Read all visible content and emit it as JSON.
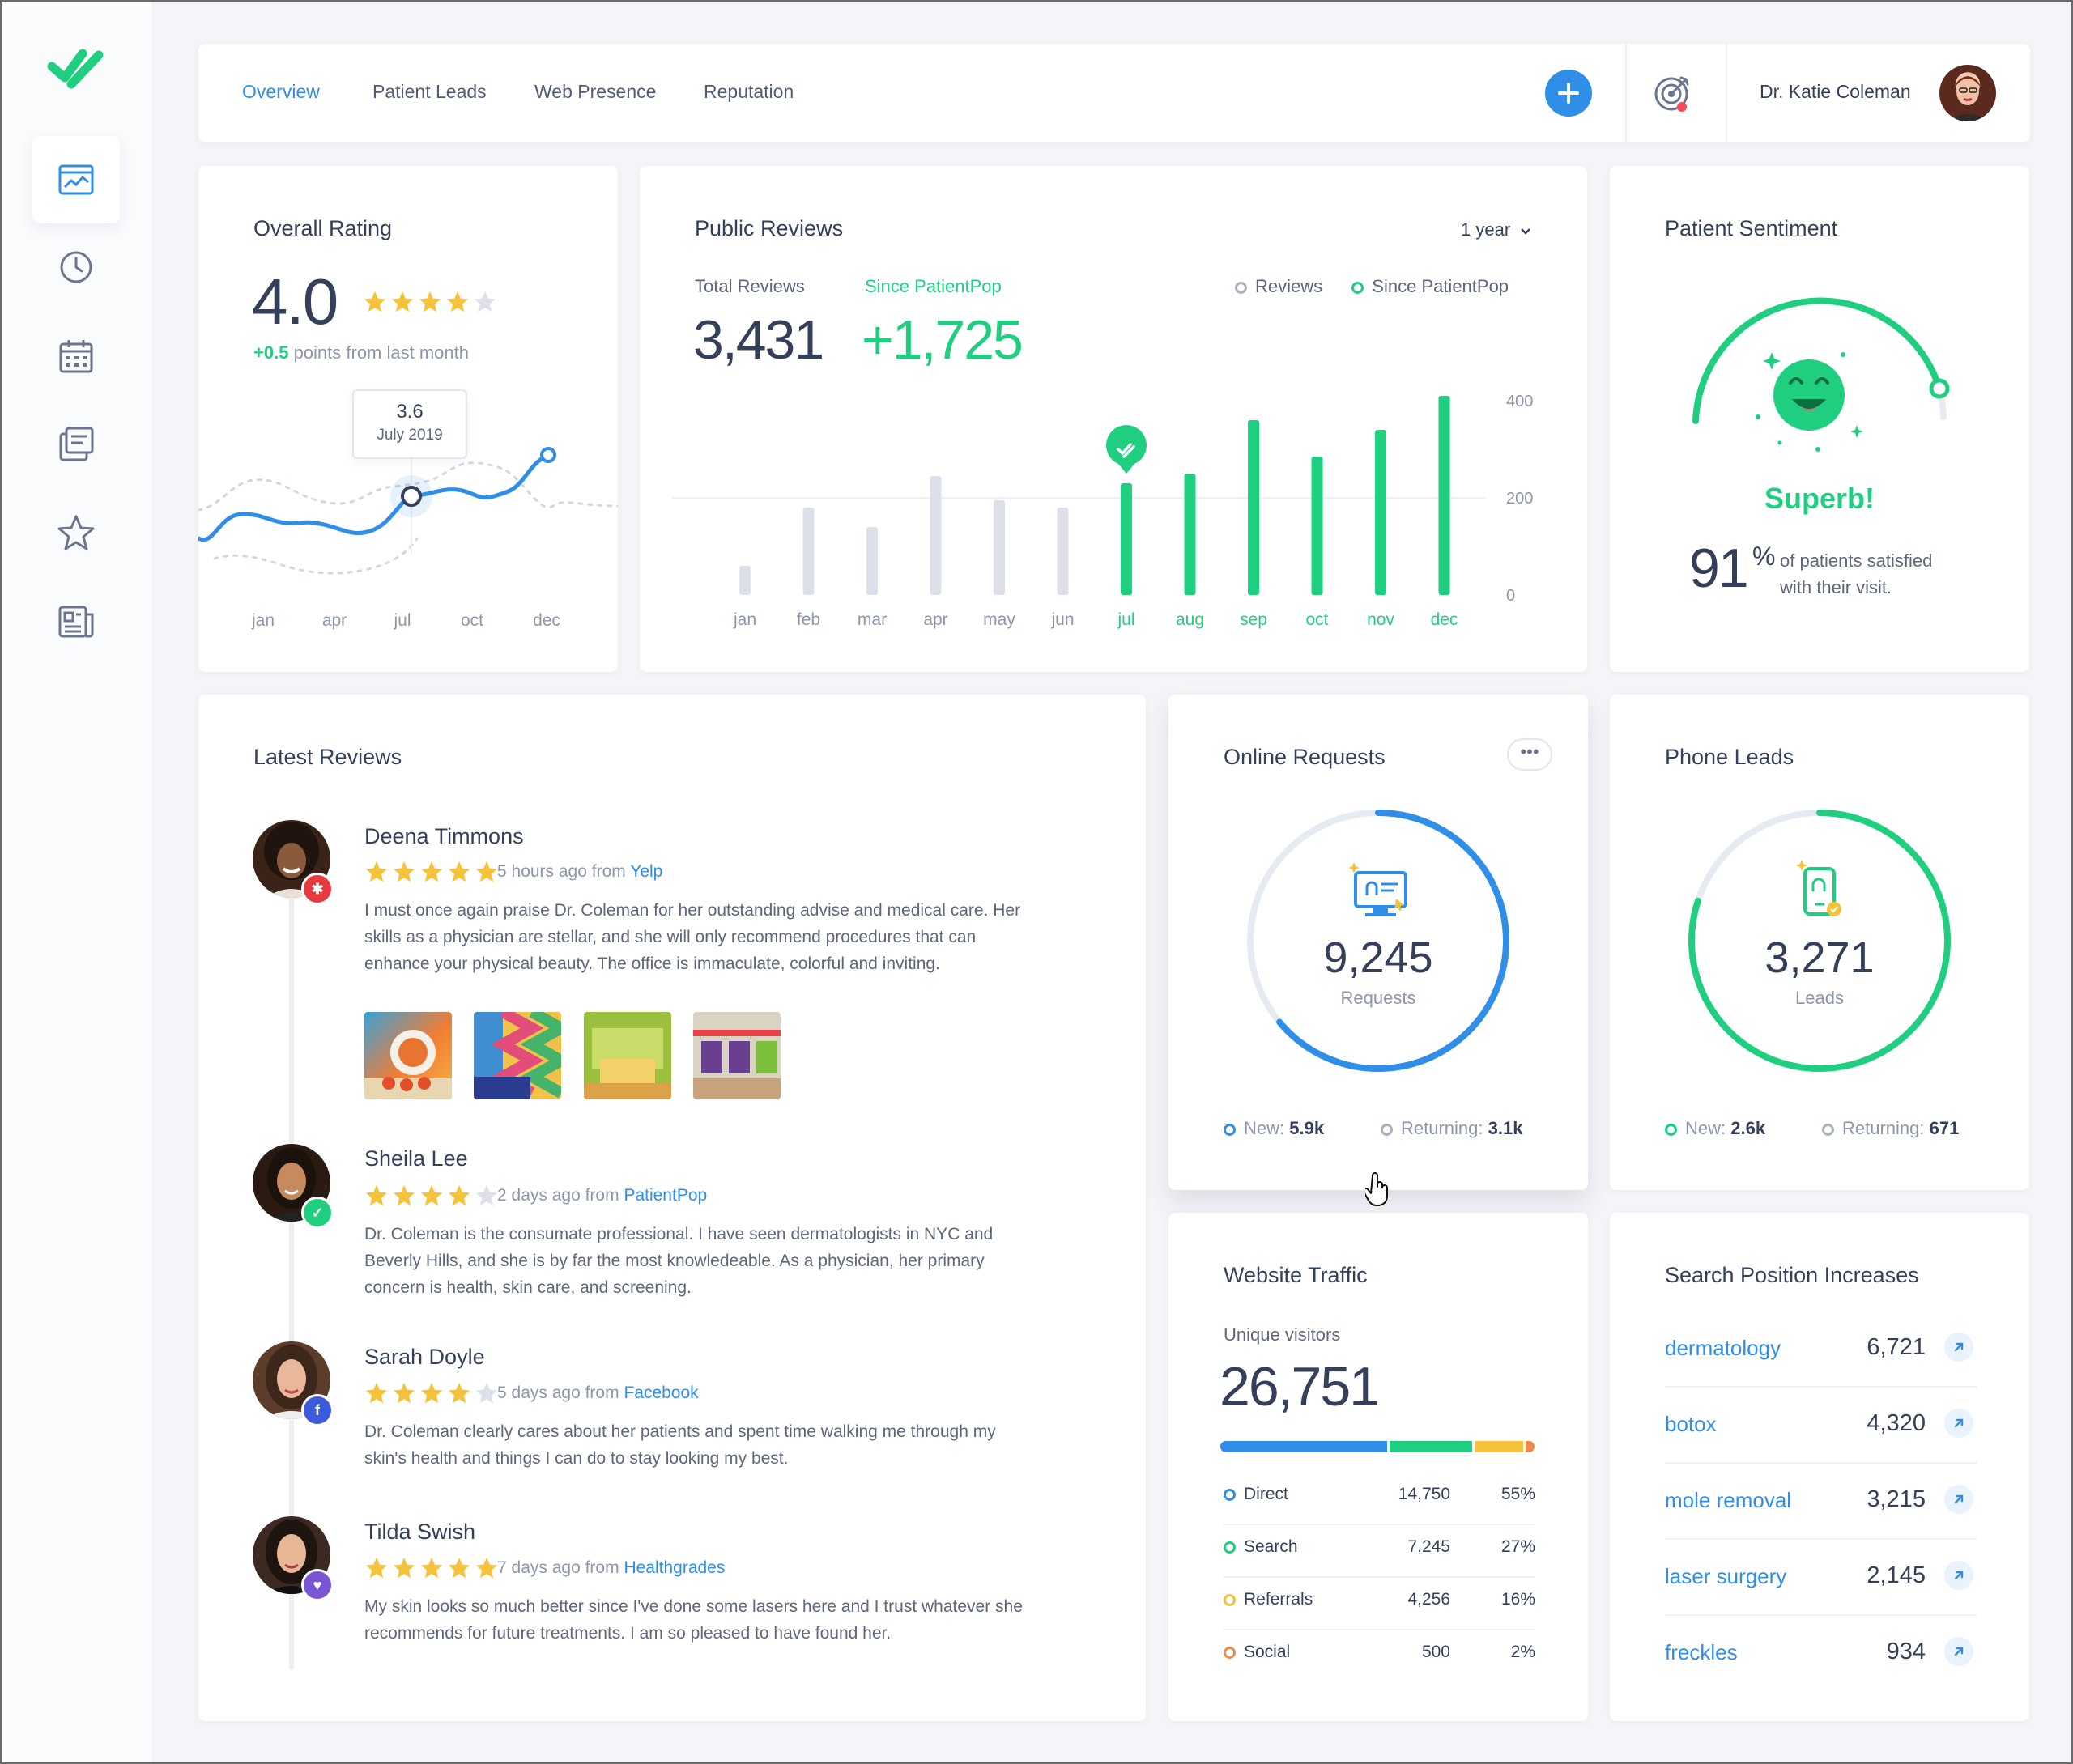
{
  "nav": {
    "tabs": [
      "Overview",
      "Patient Leads",
      "Web Presence",
      "Reputation"
    ],
    "user_name": "Dr. Katie Coleman"
  },
  "colors": {
    "blue": "#2e8ee8",
    "green": "#1fce7f",
    "gray_bar": "#dde0e8",
    "yellow": "#f5c33b",
    "orange": "#f0894a",
    "star": "#f5c33b"
  },
  "overall_rating": {
    "title": "Overall Rating",
    "value": "4.0",
    "stars": 4,
    "delta": "+0.5",
    "delta_text": "points from last month",
    "tooltip_value": "3.6",
    "tooltip_date": "July 2019",
    "x_labels": [
      "jan",
      "apr",
      "jul",
      "oct",
      "dec"
    ]
  },
  "public_reviews": {
    "title": "Public Reviews",
    "period": "1 year",
    "total_label": "Total Reviews",
    "total_value": "3,431",
    "since_label": "Since PatientPop",
    "since_value": "+1,725",
    "legend_reviews": "Reviews",
    "legend_since": "Since PatientPop"
  },
  "chart_data": {
    "type": "bar",
    "categories": [
      "jan",
      "feb",
      "mar",
      "apr",
      "may",
      "jun",
      "jul",
      "aug",
      "sep",
      "oct",
      "nov",
      "dec"
    ],
    "series": [
      {
        "name": "Reviews",
        "values": [
          60,
          180,
          140,
          245,
          195,
          180,
          null,
          null,
          null,
          null,
          null,
          null
        ]
      },
      {
        "name": "Since PatientPop",
        "values": [
          null,
          null,
          null,
          null,
          null,
          null,
          230,
          250,
          360,
          285,
          340,
          410
        ]
      }
    ],
    "yticks": [
      "0",
      "200",
      "400"
    ],
    "ylim": [
      0,
      420
    ],
    "grid": true,
    "legend_position": "top-right"
  },
  "sentiment": {
    "title": "Patient Sentiment",
    "label": "Superb!",
    "percent": "91",
    "percent_sign": "%",
    "text1": "of patients satisfied",
    "text2": "with their visit.",
    "gauge_fraction": 0.91
  },
  "latest_reviews": {
    "title": "Latest Reviews",
    "items": [
      {
        "name": "Deena Timmons",
        "stars": 5,
        "when": "5 hours ago from",
        "source": "Yelp",
        "text": [
          "I must once again praise Dr. Coleman for her outstanding advise and medical care. Her",
          "skills as a physician are stellar, and she will only recommend procedures that can",
          "enhance your physical beauty. The office is immaculate, colorful and inviting."
        ]
      },
      {
        "name": "Sheila Lee",
        "stars": 4,
        "when": "2 days ago from",
        "source": "PatientPop",
        "text": [
          "Dr. Coleman is the consumate professional. I have seen dermatologists in NYC and",
          "Beverly Hills, and she is by far the most knowledeable. As a physician, her primary",
          "concern is health, skin care, and screening."
        ]
      },
      {
        "name": "Sarah Doyle",
        "stars": 4,
        "when": "5 days ago from",
        "source": "Facebook",
        "text": [
          "Dr. Coleman clearly cares about her patients and spent time walking me through my",
          "skin's health and things I can do to stay looking my best."
        ]
      },
      {
        "name": "Tilda Swish",
        "stars": 5,
        "when": "7 days ago from",
        "source": "Healthgrades",
        "text": [
          "My skin looks so much better since I've done some lasers here and I trust whatever she",
          "recommends for future treatments. I am so pleased to have found her."
        ]
      }
    ]
  },
  "online_requests": {
    "title": "Online Requests",
    "value": "9,245",
    "unit": "Requests",
    "new_label": "New:",
    "new_value": "5.9k",
    "ret_label": "Returning:",
    "ret_value": "3.1k",
    "fraction": 0.64
  },
  "phone_leads": {
    "title": "Phone Leads",
    "value": "3,271",
    "unit": "Leads",
    "new_label": "New:",
    "new_value": "2.6k",
    "ret_label": "Returning:",
    "ret_value": "671",
    "fraction": 0.8
  },
  "website_traffic": {
    "title": "Website Traffic",
    "subtitle": "Unique visitors",
    "value": "26,751",
    "rows": [
      {
        "label": "Direct",
        "count": "14,750",
        "pct": "55%",
        "color": "#2e8ee8",
        "share": 0.55
      },
      {
        "label": "Search",
        "count": "7,245",
        "pct": "27%",
        "color": "#1fce7f",
        "share": 0.27
      },
      {
        "label": "Referrals",
        "count": "4,256",
        "pct": "16%",
        "color": "#f5c33b",
        "share": 0.16
      },
      {
        "label": "Social",
        "count": "500",
        "pct": "2%",
        "color": "#f0894a",
        "share": 0.02
      }
    ]
  },
  "search_positions": {
    "title": "Search Position Increases",
    "rows": [
      {
        "term": "dermatology",
        "value": "6,721"
      },
      {
        "term": "botox",
        "value": "4,320"
      },
      {
        "term": "mole removal",
        "value": "3,215"
      },
      {
        "term": "laser surgery",
        "value": "2,145"
      },
      {
        "term": "freckles",
        "value": "934"
      }
    ]
  }
}
